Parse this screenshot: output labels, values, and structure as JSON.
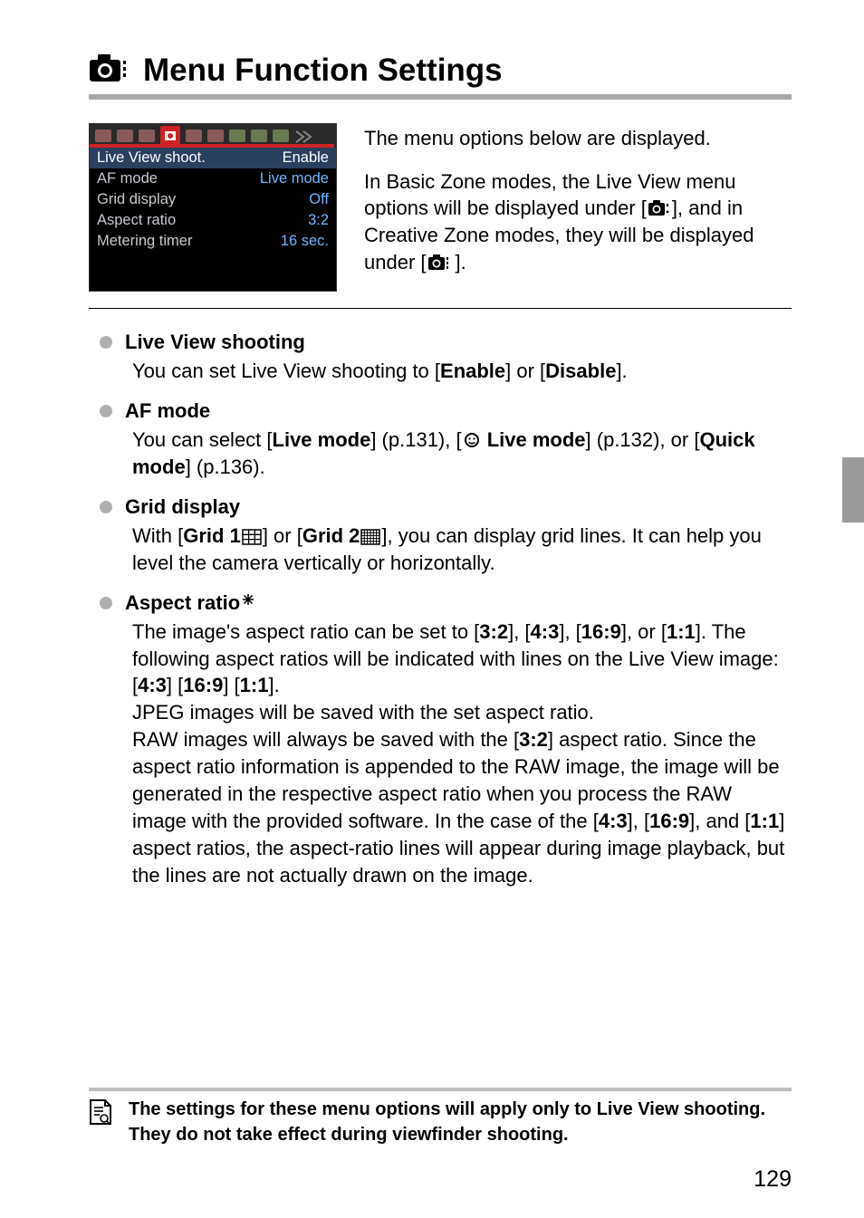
{
  "title": "Menu Function Settings",
  "menu_screenshot": {
    "rows": [
      {
        "label": "Live View shoot.",
        "value": "Enable",
        "selected": true
      },
      {
        "label": "AF mode",
        "value": "Live mode",
        "selected": false
      },
      {
        "label": "Grid display",
        "value": "Off",
        "selected": false
      },
      {
        "label": "Aspect ratio",
        "value": "3:2",
        "selected": false
      },
      {
        "label": "Metering timer",
        "value": "16 sec.",
        "selected": false
      }
    ],
    "tabs_background": "#2a2a2a",
    "label_color": "#c8c8d0",
    "value_color": "#6fb8ff",
    "selected_bg": "#2b3f5f",
    "selected_text": "#ffffff"
  },
  "intro": {
    "p1": "The menu options below are displayed.",
    "p2a": "In Basic Zone modes, the Live View menu options will be displayed under [",
    "p2b": "], and in Creative Zone modes, they will be displayed under [",
    "p2c": "]."
  },
  "items": {
    "lv": {
      "head": "Live View shooting",
      "body_a": "You can set Live View shooting to [",
      "body_b": "Enable",
      "body_c": "] or [",
      "body_d": "Disable",
      "body_e": "]."
    },
    "af": {
      "head": "AF mode",
      "body_a": "You can select [",
      "body_b": "Live mode",
      "body_c": "] (p.131), [",
      "body_d": " Live mode",
      "body_e": "] (p.132), or [",
      "body_f": "Quick mode",
      "body_g": "] (p.136)."
    },
    "grid": {
      "head": "Grid display",
      "body_a": "With [",
      "body_b": "Grid 1",
      "body_c": "] or [",
      "body_d": "Grid 2",
      "body_e": "], you can display grid lines. It can help you level the camera vertically or horizontally."
    },
    "aspect": {
      "head": "Aspect ratio",
      "star": "N",
      "p1_a": "The image's aspect ratio can be set to [",
      "p1_b": "3:2",
      "p1_c": "], [",
      "p1_d": "4:3",
      "p1_e": "], [",
      "p1_f": "16:9",
      "p1_g": "], or [",
      "p1_h": "1:1",
      "p1_i": "]. The following aspect ratios will be indicated with lines on the Live View image: [",
      "p1_j": "4:3",
      "p1_k": "] [",
      "p1_l": "16:9",
      "p1_m": "] [",
      "p1_n": "1:1",
      "p1_o": "].",
      "p2": "JPEG images will be saved with the set aspect ratio.",
      "p3_a": "RAW images will always be saved with the [",
      "p3_b": "3:2",
      "p3_c": "] aspect ratio. Since the aspect ratio information is appended to the RAW image, the image will be generated in the respective aspect ratio when you process the RAW image with the provided software. In the case of the [",
      "p3_d": "4:3",
      "p3_e": "], [",
      "p3_f": "16:9",
      "p3_g": "], and [",
      "p3_h": "1:1",
      "p3_i": "] aspect ratios, the aspect-ratio lines will appear during image playback, but the lines are not actually drawn on the image."
    }
  },
  "note": "The settings for these menu options will apply only to Live View shooting. They do not take effect during viewfinder shooting.",
  "page_number": "129",
  "colors": {
    "title_rule": "#a8a8a8",
    "bullet": "#b0b0b0",
    "side_tab": "#9a9a9a",
    "note_rule": "#bdbdbd"
  },
  "icons": {
    "camera_menu_basic": "camera-menu-basic-icon",
    "camera_menu_creative": "camera-menu-creative-icon",
    "face": "face-detect-icon",
    "grid1": "grid1-icon",
    "grid2": "grid2-icon",
    "star": "star-icon",
    "note": "note-page-icon",
    "title_camera": "camera-title-icon"
  }
}
